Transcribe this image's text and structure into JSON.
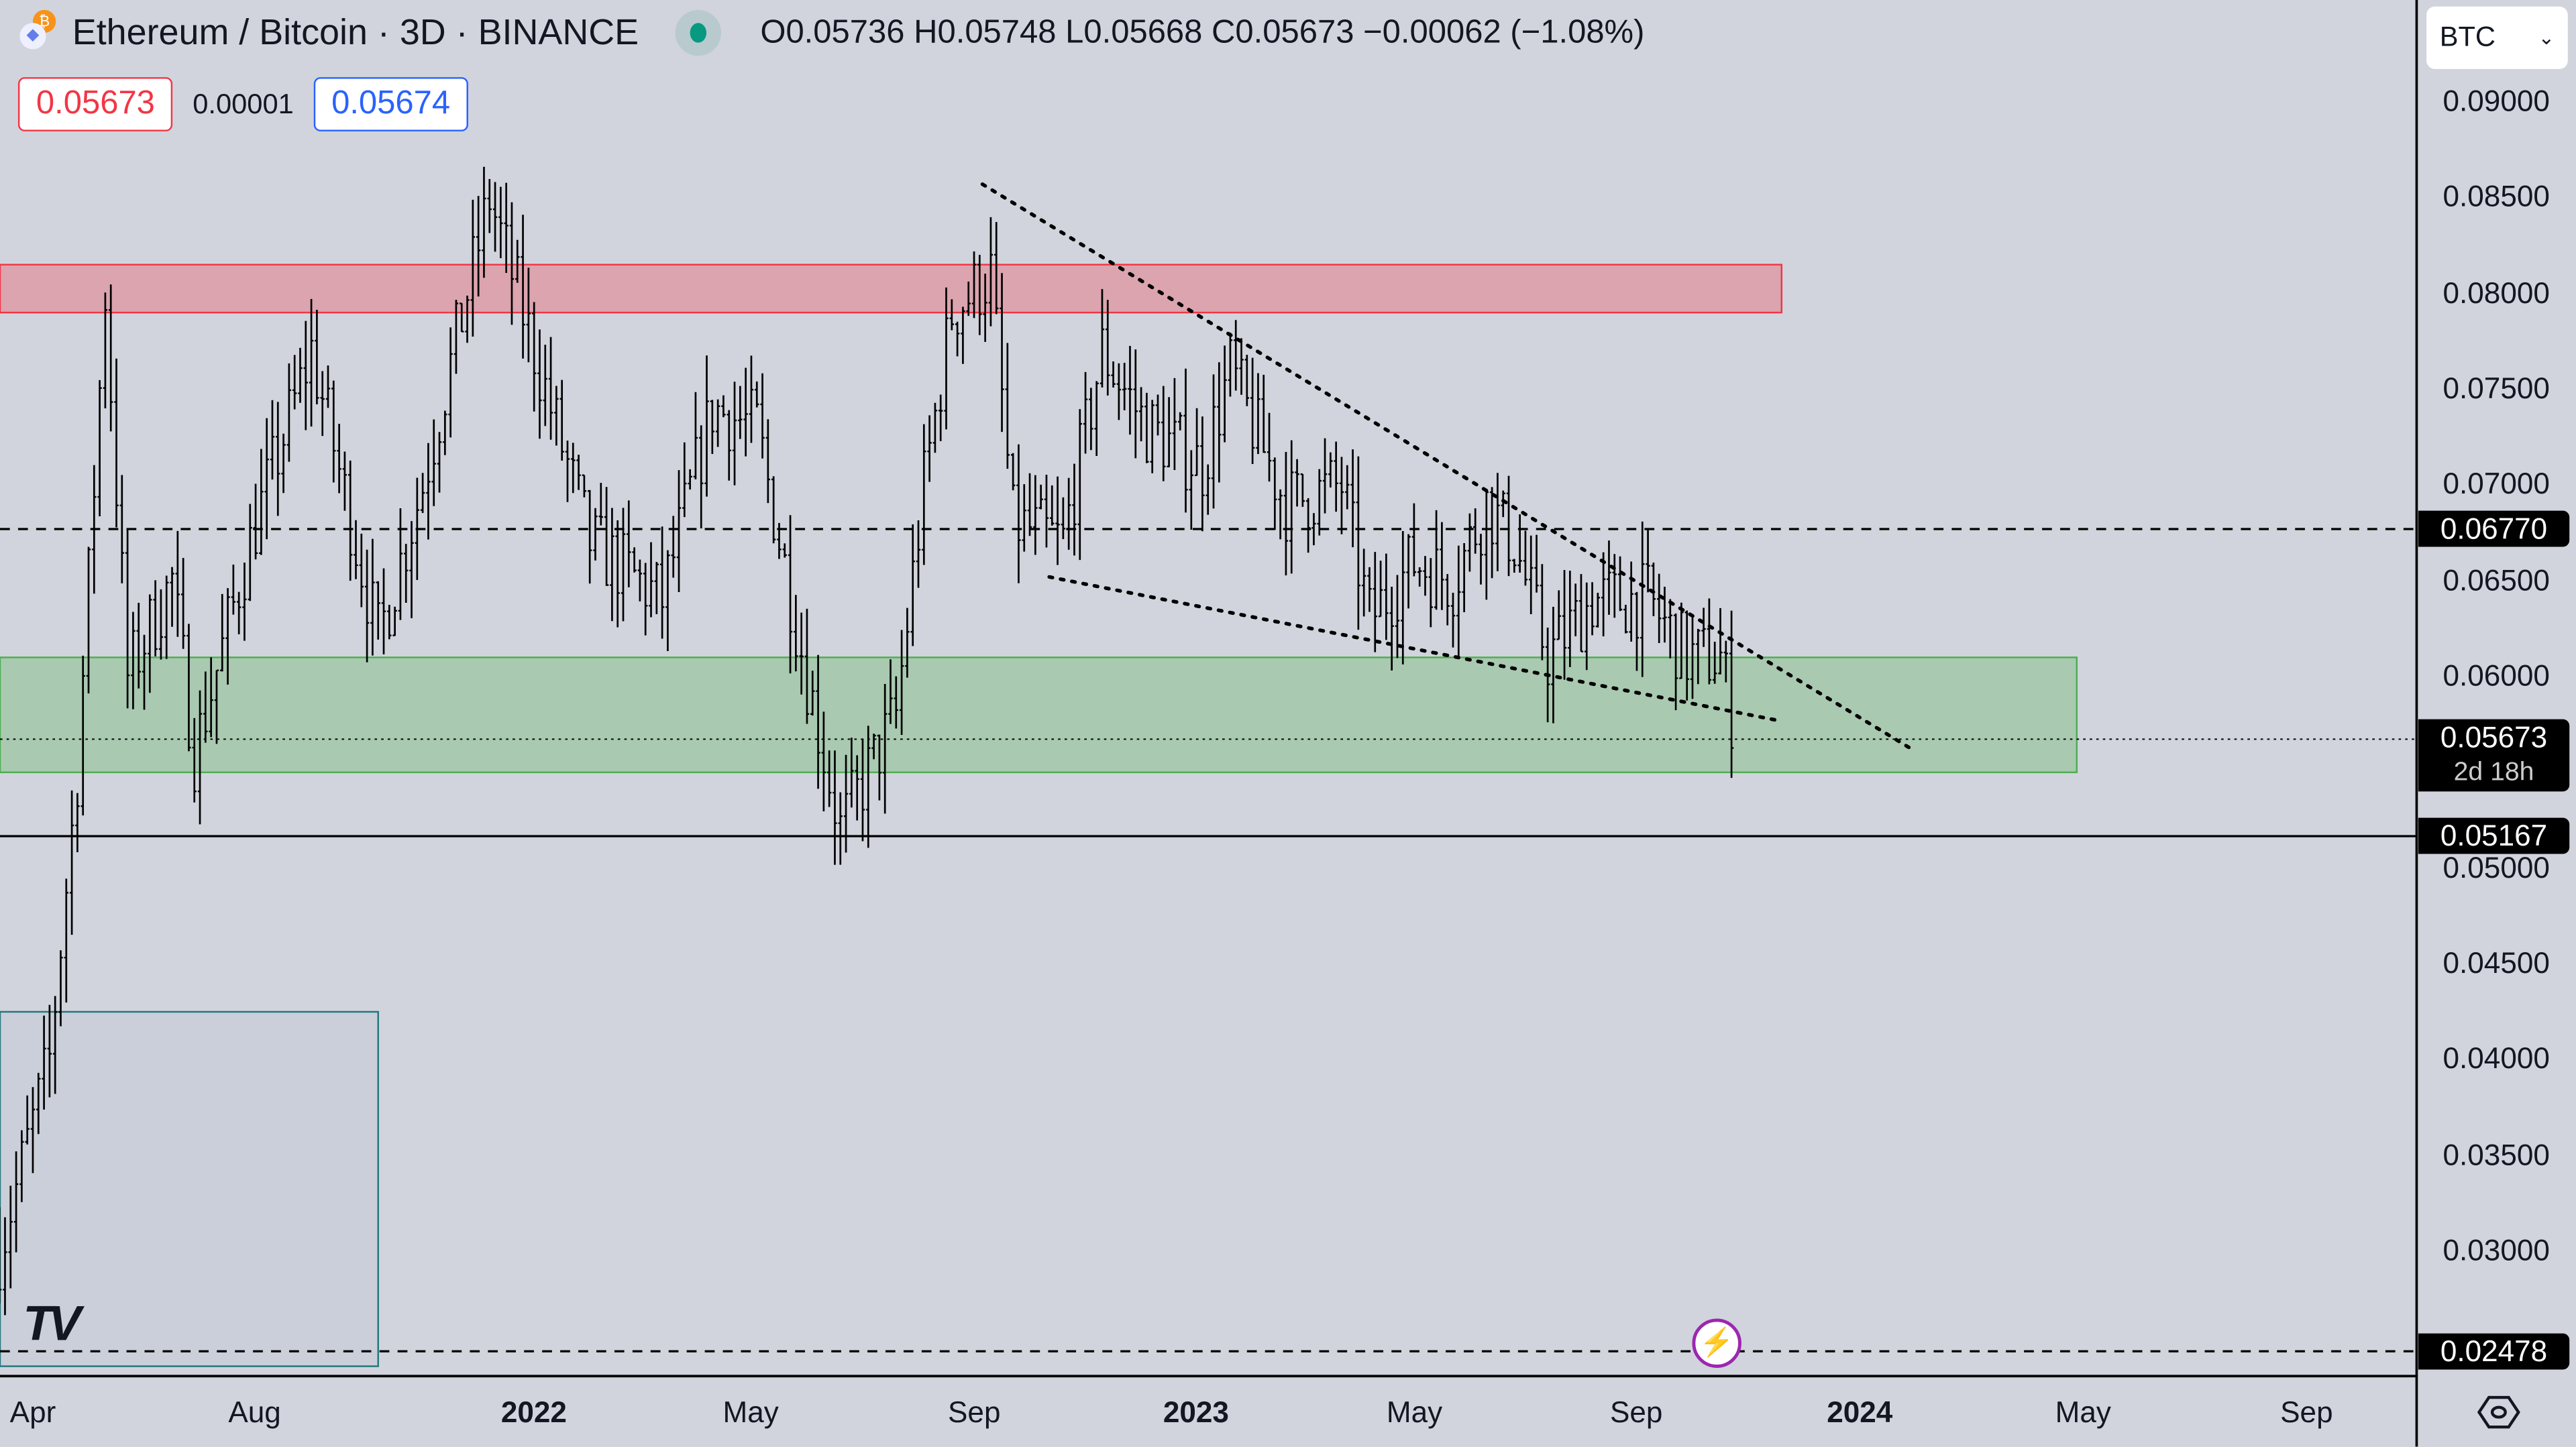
{
  "header": {
    "title": "Ethereum / Bitcoin · 3D · BINANCE",
    "ohlc": "O0.05736  H0.05748  L0.05668  C0.05673  −0.00062 (−1.08%)",
    "market_status_color": "#089981"
  },
  "trade": {
    "sell_price": "0.05673",
    "spread": "0.00001",
    "buy_price": "0.05674"
  },
  "currency_select": {
    "value": "BTC"
  },
  "price_axis": {
    "labels": [
      "0.09000",
      "0.08500",
      "0.08000",
      "0.07500",
      "0.07000",
      "0.06500",
      "0.06000",
      "0.05000",
      "0.04500",
      "0.04000",
      "0.03500",
      "0.03000"
    ],
    "tags": [
      {
        "value": "0.06770",
        "sub": ""
      },
      {
        "value": "0.05673",
        "sub": "2d 18h"
      },
      {
        "value": "0.05167",
        "sub": ""
      },
      {
        "value": "0.02478",
        "sub": ""
      }
    ]
  },
  "time_axis": {
    "labels": [
      "Apr",
      "Aug",
      "2022",
      "May",
      "Sep",
      "2023",
      "May",
      "Sep",
      "2024",
      "May",
      "Sep"
    ],
    "bold": [
      false,
      false,
      true,
      false,
      false,
      true,
      false,
      false,
      true,
      false,
      false
    ]
  },
  "chart_data": {
    "type": "ohlc",
    "symbol": "ETHBTC",
    "interval": "3D",
    "x_unit": "months since Apr 2021",
    "ylim": [
      0.02,
      0.092
    ],
    "path": [
      [
        -0.6,
        0.03
      ],
      [
        0.3,
        0.04
      ],
      [
        0.8,
        0.055
      ],
      [
        1.3,
        0.08
      ],
      [
        1.7,
        0.06
      ],
      [
        2.5,
        0.065
      ],
      [
        2.9,
        0.056
      ],
      [
        4,
        0.068
      ],
      [
        5,
        0.077
      ],
      [
        6.2,
        0.062
      ],
      [
        7,
        0.07
      ],
      [
        8.2,
        0.085
      ],
      [
        9,
        0.077
      ],
      [
        10,
        0.067
      ],
      [
        11.3,
        0.064
      ],
      [
        12.2,
        0.074
      ],
      [
        13,
        0.073
      ],
      [
        13.9,
        0.06
      ],
      [
        14.5,
        0.052
      ],
      [
        15.5,
        0.058
      ],
      [
        16,
        0.07
      ],
      [
        16.5,
        0.079
      ],
      [
        17.2,
        0.081
      ],
      [
        17.6,
        0.068
      ],
      [
        18.5,
        0.067
      ],
      [
        19.2,
        0.077
      ],
      [
        20,
        0.073
      ],
      [
        21,
        0.071
      ],
      [
        21.5,
        0.076
      ],
      [
        22.5,
        0.069
      ],
      [
        23.5,
        0.07
      ],
      [
        24,
        0.063
      ],
      [
        24.8,
        0.066
      ],
      [
        25.5,
        0.065
      ],
      [
        26.1,
        0.069
      ],
      [
        26.6,
        0.067
      ],
      [
        27.2,
        0.061
      ],
      [
        28,
        0.064
      ],
      [
        29,
        0.064
      ],
      [
        29.7,
        0.061
      ],
      [
        30.3,
        0.061
      ],
      [
        30.6,
        0.0567
      ]
    ],
    "zones": [
      {
        "name": "resistance",
        "from": 0.079,
        "to": 0.0815,
        "end_month": 31.4,
        "color": "#f23645"
      },
      {
        "name": "support",
        "from": 0.055,
        "to": 0.061,
        "end_month": 36.7,
        "color": "#4caf50"
      },
      {
        "name": "box",
        "from": 0.024,
        "to": 0.0425,
        "end_month": 6.2,
        "color": "#22777c"
      }
    ],
    "levels": [
      {
        "price": 0.0677,
        "style": "dashed"
      },
      {
        "price": 0.05167,
        "style": "solid"
      },
      {
        "price": 0.02478,
        "style": "dashed"
      },
      {
        "price": 0.05673,
        "style": "dotted"
      }
    ],
    "trendlines": [
      [
        [
          17.05,
          0.0857
        ],
        [
          33.8,
          0.0561
        ]
      ],
      [
        [
          18.25,
          0.0652
        ],
        [
          31.35,
          0.0577
        ]
      ]
    ]
  }
}
